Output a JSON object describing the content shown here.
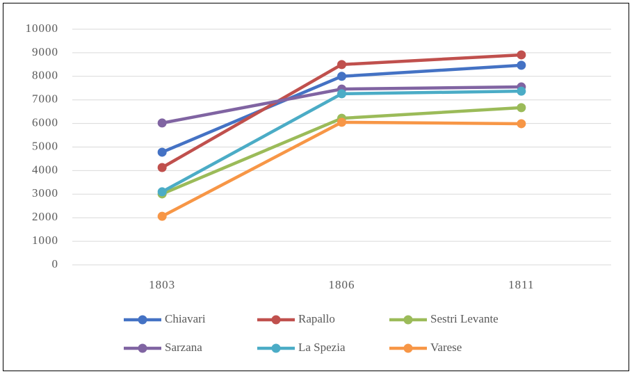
{
  "chart_data": {
    "type": "line",
    "categories": [
      "1803",
      "1806",
      "1811"
    ],
    "series": [
      {
        "name": "Chiavari",
        "color": "#4472c4",
        "values": [
          4780,
          8000,
          8470
        ]
      },
      {
        "name": "Rapallo",
        "color": "#c0504d",
        "values": [
          4130,
          8500,
          8910
        ]
      },
      {
        "name": "Sestri Levante",
        "color": "#9bbb59",
        "values": [
          3010,
          6220,
          6670
        ]
      },
      {
        "name": "Sarzana",
        "color": "#8064a2",
        "values": [
          6020,
          7460,
          7550
        ]
      },
      {
        "name": "La Spezia",
        "color": "#4bacc6",
        "values": [
          3100,
          7260,
          7370
        ]
      },
      {
        "name": "Varese",
        "color": "#f79646",
        "values": [
          2060,
          6050,
          5990
        ]
      }
    ],
    "ylim": [
      0,
      10000
    ],
    "yticks": [
      0,
      1000,
      2000,
      3000,
      4000,
      5000,
      6000,
      7000,
      8000,
      9000,
      10000
    ],
    "grid": true,
    "legend": "bottom"
  }
}
